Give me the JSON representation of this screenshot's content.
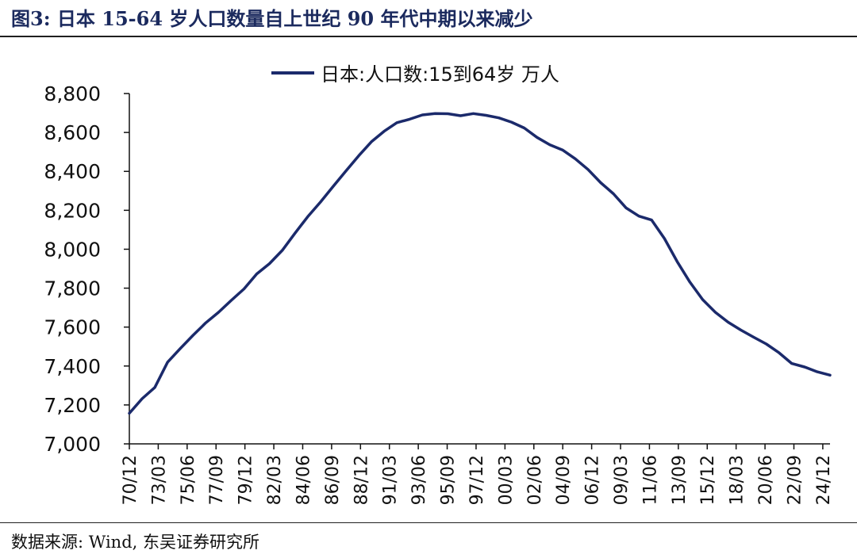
{
  "figure": {
    "title": "图3:  日本 15-64 岁人口数量自上世纪 90 年代中期以来减少",
    "source": "数据来源:  Wind,  东吴证券研究所"
  },
  "colors": {
    "line": "#1b2a6b",
    "axis": "#111111",
    "title": "#1b2a5e"
  },
  "chart_data": {
    "type": "line",
    "title": "",
    "xlabel": "",
    "ylabel": "",
    "grid": false,
    "legend_position": "top-center",
    "ylim": [
      7000,
      8800
    ],
    "yticks": [
      7000,
      7200,
      7400,
      7600,
      7800,
      8000,
      8200,
      8400,
      8600,
      8800
    ],
    "ytick_labels": [
      "7,000",
      "7,200",
      "7,400",
      "7,600",
      "7,800",
      "8,000",
      "8,200",
      "8,400",
      "8,600",
      "8,800"
    ],
    "xtick_labels": [
      "70/12",
      "73/03",
      "75/06",
      "77/09",
      "79/12",
      "82/03",
      "84/06",
      "86/09",
      "88/12",
      "91/03",
      "93/06",
      "95/09",
      "97/12",
      "00/03",
      "02/06",
      "04/09",
      "06/12",
      "09/03",
      "11/06",
      "13/09",
      "15/12",
      "18/03",
      "20/06",
      "22/09",
      "24/12"
    ],
    "x": [
      "70/12",
      "71/12",
      "72/12",
      "73/12",
      "74/12",
      "75/12",
      "76/12",
      "77/12",
      "78/12",
      "79/12",
      "80/12",
      "81/12",
      "82/12",
      "83/12",
      "84/12",
      "85/12",
      "86/12",
      "87/12",
      "88/12",
      "89/12",
      "90/12",
      "91/12",
      "92/12",
      "93/12",
      "94/12",
      "95/12",
      "96/12",
      "97/12",
      "98/12",
      "99/12",
      "00/12",
      "01/12",
      "02/12",
      "03/12",
      "04/12",
      "05/12",
      "06/12",
      "07/12",
      "08/12",
      "09/12",
      "10/12",
      "11/12",
      "12/12",
      "13/12",
      "14/12",
      "15/12",
      "16/12",
      "17/12",
      "18/12",
      "19/12",
      "20/12",
      "21/12",
      "22/12",
      "23/12",
      "24/12",
      "25/12"
    ],
    "series": [
      {
        "name": "日本:人口数:15到64岁  万人",
        "values": [
          7157,
          7232,
          7290,
          7420,
          7490,
          7558,
          7622,
          7676,
          7737,
          7796,
          7873,
          7926,
          7994,
          8082,
          8167,
          8242,
          8323,
          8402,
          8480,
          8552,
          8606,
          8650,
          8668,
          8690,
          8697,
          8696,
          8686,
          8697,
          8688,
          8675,
          8653,
          8623,
          8575,
          8537,
          8510,
          8465,
          8410,
          8342,
          8285,
          8212,
          8170,
          8150,
          8055,
          7937,
          7831,
          7741,
          7676,
          7625,
          7585,
          7548,
          7513,
          7468,
          7413,
          7395,
          7370,
          7353
        ]
      }
    ]
  }
}
